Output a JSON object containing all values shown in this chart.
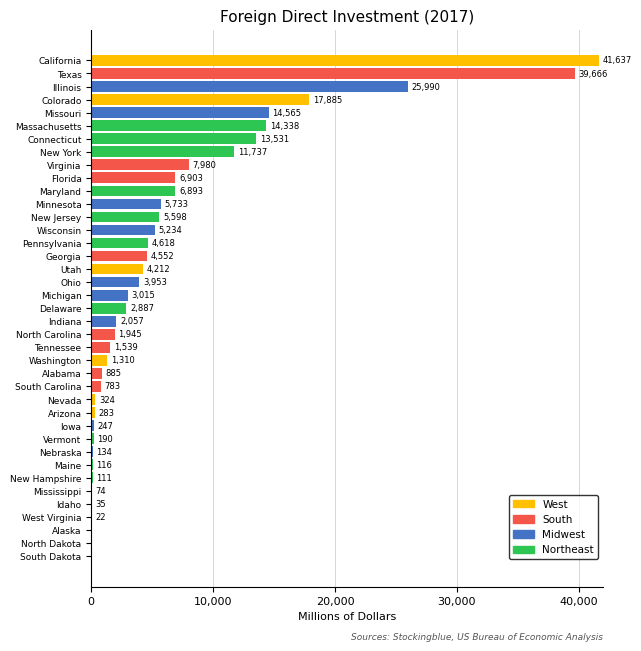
{
  "title": "Foreign Direct Investment (2017)",
  "xlabel": "Millions of Dollars",
  "source": "Sources: Stockingblue, US Bureau of Economic Analysis",
  "states": [
    "California",
    "Texas",
    "Illinois",
    "Colorado",
    "Missouri",
    "Massachusetts",
    "Connecticut",
    "New York",
    "Virginia",
    "Florida",
    "Maryland",
    "Minnesota",
    "New Jersey",
    "Wisconsin",
    "Pennsylvania",
    "Georgia",
    "Utah",
    "Ohio",
    "Michigan",
    "Delaware",
    "Indiana",
    "North Carolina",
    "Tennessee",
    "Washington",
    "Alabama",
    "South Carolina",
    "Nevada",
    "Arizona",
    "Iowa",
    "Vermont",
    "Nebraska",
    "Maine",
    "New Hampshire",
    "Mississippi",
    "Idaho",
    "West Virginia",
    "Alaska",
    "North Dakota",
    "South Dakota"
  ],
  "values": [
    41637,
    39666,
    25990,
    17885,
    14565,
    14338,
    13531,
    11737,
    7980,
    6903,
    6893,
    5733,
    5598,
    5234,
    4618,
    4552,
    4212,
    3953,
    3015,
    2887,
    2057,
    1945,
    1539,
    1310,
    885,
    783,
    324,
    283,
    247,
    190,
    134,
    116,
    111,
    74,
    35,
    22,
    0,
    0,
    0
  ],
  "regions": [
    "West",
    "South",
    "Midwest",
    "West",
    "Midwest",
    "Northeast",
    "Northeast",
    "Northeast",
    "South",
    "South",
    "Northeast",
    "Midwest",
    "Northeast",
    "Midwest",
    "Northeast",
    "South",
    "West",
    "Midwest",
    "Midwest",
    "Northeast",
    "Midwest",
    "South",
    "South",
    "West",
    "South",
    "South",
    "West",
    "West",
    "Midwest",
    "Northeast",
    "Midwest",
    "Northeast",
    "Northeast",
    "South",
    "West",
    "South",
    "West",
    "Midwest",
    "Midwest"
  ],
  "region_colors": {
    "West": "#FFC000",
    "South": "#F4574A",
    "Midwest": "#4472C4",
    "Northeast": "#2DC653"
  },
  "legend_order": [
    "West",
    "South",
    "Midwest",
    "Northeast"
  ],
  "xlim": [
    0,
    42000
  ],
  "xticks": [
    0,
    10000,
    20000,
    30000,
    40000
  ],
  "bar_height": 0.82,
  "title_fontsize": 11,
  "label_fontsize": 6.5,
  "axis_fontsize": 8,
  "source_fontsize": 6.5,
  "figsize": [
    6.4,
    6.4
  ],
  "dpi": 100
}
